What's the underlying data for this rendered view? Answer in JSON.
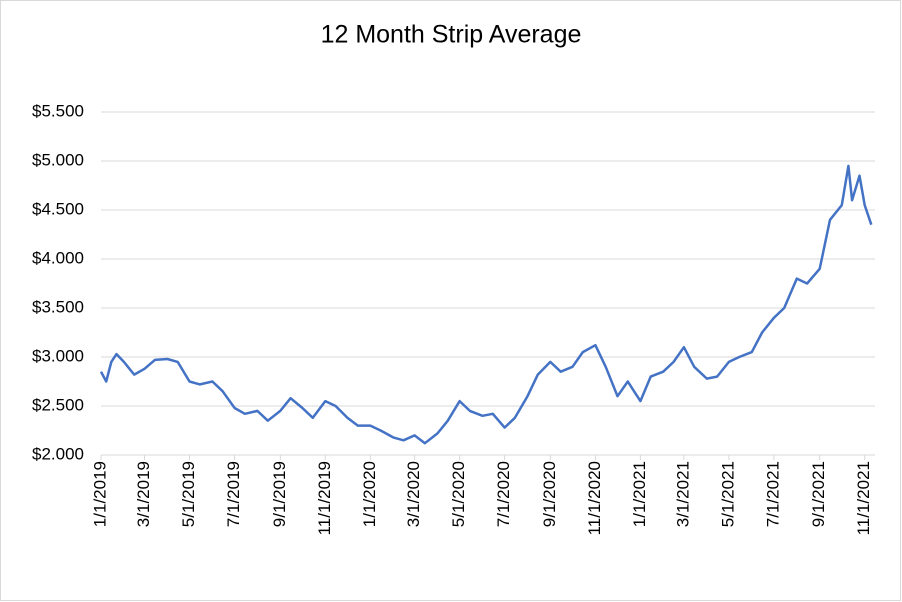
{
  "chart_data": {
    "type": "line",
    "title": "12 Month Strip Average",
    "x": [
      "2019-01-01",
      "2019-01-08",
      "2019-01-15",
      "2019-01-22",
      "2019-02-01",
      "2019-02-15",
      "2019-03-01",
      "2019-03-15",
      "2019-04-01",
      "2019-04-15",
      "2019-05-01",
      "2019-05-15",
      "2019-06-01",
      "2019-06-15",
      "2019-07-01",
      "2019-07-15",
      "2019-08-01",
      "2019-08-15",
      "2019-09-01",
      "2019-09-15",
      "2019-10-01",
      "2019-10-15",
      "2019-11-01",
      "2019-11-15",
      "2019-12-01",
      "2019-12-15",
      "2020-01-01",
      "2020-01-15",
      "2020-02-01",
      "2020-02-15",
      "2020-03-01",
      "2020-03-15",
      "2020-04-01",
      "2020-04-15",
      "2020-05-01",
      "2020-05-15",
      "2020-06-01",
      "2020-06-15",
      "2020-07-01",
      "2020-07-15",
      "2020-08-01",
      "2020-08-15",
      "2020-09-01",
      "2020-09-15",
      "2020-10-01",
      "2020-10-15",
      "2020-11-01",
      "2020-11-15",
      "2020-12-01",
      "2020-12-15",
      "2021-01-01",
      "2021-01-15",
      "2021-02-01",
      "2021-02-15",
      "2021-03-01",
      "2021-03-15",
      "2021-04-01",
      "2021-04-15",
      "2021-05-01",
      "2021-05-15",
      "2021-06-01",
      "2021-06-15",
      "2021-07-01",
      "2021-07-15",
      "2021-08-01",
      "2021-08-15",
      "2021-09-01",
      "2021-09-15",
      "2021-10-01",
      "2021-10-10",
      "2021-10-15",
      "2021-10-25",
      "2021-11-01",
      "2021-11-10"
    ],
    "series": [
      {
        "name": "12 Month Strip Average",
        "color": "#4472c4",
        "values": [
          2.85,
          2.75,
          2.95,
          3.03,
          2.95,
          2.82,
          2.88,
          2.97,
          2.98,
          2.95,
          2.75,
          2.72,
          2.75,
          2.65,
          2.48,
          2.42,
          2.45,
          2.35,
          2.45,
          2.58,
          2.48,
          2.38,
          2.55,
          2.5,
          2.38,
          2.3,
          2.3,
          2.25,
          2.18,
          2.15,
          2.2,
          2.12,
          2.22,
          2.35,
          2.55,
          2.45,
          2.4,
          2.42,
          2.28,
          2.38,
          2.6,
          2.82,
          2.95,
          2.85,
          2.9,
          3.05,
          3.12,
          2.9,
          2.6,
          2.75,
          2.55,
          2.8,
          2.85,
          2.95,
          3.1,
          2.9,
          2.78,
          2.8,
          2.95,
          3.0,
          3.05,
          3.25,
          3.4,
          3.5,
          3.8,
          3.75,
          3.9,
          4.4,
          4.55,
          4.95,
          4.6,
          4.85,
          4.55,
          4.35
        ]
      }
    ],
    "xlim": [
      "2019-01-01",
      "2021-11-15"
    ],
    "xticks": [
      {
        "value": "2019-01-01",
        "label": "1/1/2019"
      },
      {
        "value": "2019-03-01",
        "label": "3/1/2019"
      },
      {
        "value": "2019-05-01",
        "label": "5/1/2019"
      },
      {
        "value": "2019-07-01",
        "label": "7/1/2019"
      },
      {
        "value": "2019-09-01",
        "label": "9/1/2019"
      },
      {
        "value": "2019-11-01",
        "label": "11/1/2019"
      },
      {
        "value": "2020-01-01",
        "label": "1/1/2020"
      },
      {
        "value": "2020-03-01",
        "label": "3/1/2020"
      },
      {
        "value": "2020-05-01",
        "label": "5/1/2020"
      },
      {
        "value": "2020-07-01",
        "label": "7/1/2020"
      },
      {
        "value": "2020-09-01",
        "label": "9/1/2020"
      },
      {
        "value": "2020-11-01",
        "label": "11/1/2020"
      },
      {
        "value": "2021-01-01",
        "label": "1/1/2021"
      },
      {
        "value": "2021-03-01",
        "label": "3/1/2021"
      },
      {
        "value": "2021-05-01",
        "label": "5/1/2021"
      },
      {
        "value": "2021-07-01",
        "label": "7/1/2021"
      },
      {
        "value": "2021-09-01",
        "label": "9/1/2021"
      },
      {
        "value": "2021-11-01",
        "label": "11/1/2021"
      }
    ],
    "ylim": [
      2,
      5.5
    ],
    "yticks": [
      {
        "value": 2,
        "label": "$2.000"
      },
      {
        "value": 2.5,
        "label": "$2.500"
      },
      {
        "value": 3,
        "label": "$3.000"
      },
      {
        "value": 3.5,
        "label": "$3.500"
      },
      {
        "value": 4,
        "label": "$4.000"
      },
      {
        "value": 4.5,
        "label": "$4.500"
      },
      {
        "value": 5,
        "label": "$5.000"
      },
      {
        "value": 5.5,
        "label": "$5.500"
      }
    ],
    "grid": true
  }
}
